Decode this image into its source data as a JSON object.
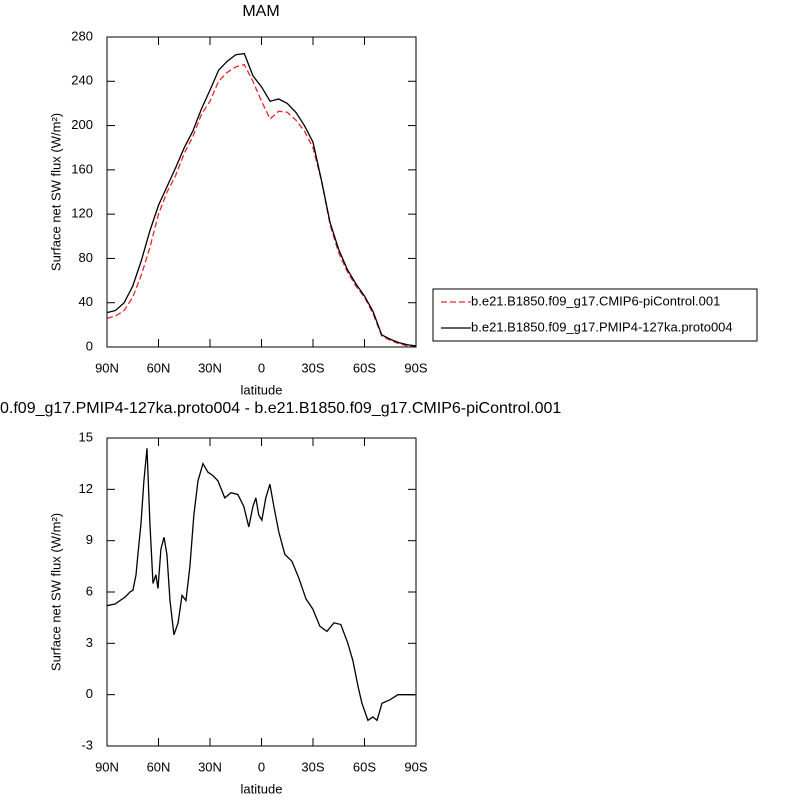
{
  "chart_data": [
    {
      "type": "line",
      "title": "MAM",
      "xlabel": "latitude",
      "ylabel": "Surface net SW flux (W/m²)",
      "x": [
        90,
        85,
        80,
        75,
        70,
        65,
        60,
        55,
        50,
        45,
        40,
        35,
        30,
        25,
        20,
        15,
        10,
        5,
        0,
        -5,
        -10,
        -15,
        -20,
        -25,
        -30,
        -35,
        -40,
        -45,
        -50,
        -55,
        -60,
        -65,
        -70,
        -75,
        -80,
        -85,
        -90
      ],
      "series": [
        {
          "name": "b.e21.B1850.f09_g17.CMIP6-piControl.001",
          "color": "#e8262a",
          "linestyle": "dashed",
          "values": [
            26,
            28,
            33,
            45,
            65,
            90,
            120,
            140,
            155,
            175,
            190,
            210,
            222,
            240,
            248,
            253,
            255,
            240,
            222,
            206,
            213,
            212,
            205,
            195,
            180,
            150,
            110,
            85,
            68,
            55,
            45,
            30,
            10,
            6,
            3,
            1,
            0.5
          ]
        },
        {
          "name": "b.e21.B1850.f09_g17.PMIP4-127ka.proto004",
          "color": "#000000",
          "linestyle": "solid",
          "values": [
            31,
            33,
            40,
            55,
            78,
            105,
            128,
            145,
            162,
            180,
            195,
            215,
            232,
            250,
            258,
            264,
            265,
            245,
            235,
            222,
            224,
            220,
            212,
            200,
            185,
            150,
            112,
            88,
            70,
            57,
            46,
            32,
            11,
            7,
            4,
            2,
            1
          ]
        }
      ],
      "xlim": [
        90,
        -90
      ],
      "xticks": [
        {
          "value": 90,
          "label": "90N"
        },
        {
          "value": 60,
          "label": "60N"
        },
        {
          "value": 30,
          "label": "30N"
        },
        0,
        {
          "value": -30,
          "label": "30S"
        },
        {
          "value": -60,
          "label": "60S"
        },
        {
          "value": -90,
          "label": "90S"
        }
      ],
      "ylim": [
        0,
        280
      ],
      "yticks": [
        0,
        40,
        80,
        120,
        160,
        200,
        240,
        280
      ],
      "legend": "right"
    },
    {
      "type": "line",
      "title": "0.f09_g17.PMIP4-127ka.proto004 - b.e21.B1850.f09_g17.CMIP6-piControl.001",
      "xlabel": "latitude",
      "ylabel": "Surface net SW flux (W/m²)",
      "x": [
        90,
        85.3,
        79.5,
        76.6,
        74.9,
        73.1,
        71.9,
        70.2,
        68.5,
        66.7,
        65.0,
        63.2,
        61.5,
        60.3,
        58.6,
        56.8,
        55.1,
        53.3,
        51.0,
        48.6,
        46.3,
        44.0,
        41.7,
        39.4,
        37.0,
        34.1,
        31.2,
        28.3,
        25.4,
        21.4,
        17.8,
        13.8,
        10.3,
        7.4,
        5.0,
        3.3,
        1.6,
        -0.2,
        -2.5,
        -4.9,
        -7.2,
        -10.1,
        -13.6,
        -17.7,
        -21.8,
        -25.9,
        -29.9,
        -34.0,
        -38.1,
        -42.2,
        -46.2,
        -50.3,
        -53.2,
        -56.2,
        -58.5,
        -62.0,
        -64.9,
        -67.3,
        -70.2,
        -74.8,
        -79.5,
        -85.3,
        -90
      ],
      "values": [
        5.2,
        5.3,
        5.7,
        6.0,
        6.1,
        7.0,
        8.3,
        10,
        12.5,
        14.4,
        10,
        6.5,
        7,
        6.2,
        8.5,
        9.2,
        8.2,
        5.5,
        3.5,
        4.2,
        5.8,
        5.5,
        7.5,
        10.5,
        12.5,
        13.5,
        13,
        12.8,
        12.5,
        11.5,
        11.8,
        11.7,
        11,
        9.8,
        11,
        11.5,
        10.5,
        10.2,
        11.5,
        12.3,
        11,
        9.5,
        8.2,
        7.8,
        6.8,
        5.6,
        5,
        4,
        3.7,
        4.2,
        4.1,
        3,
        2,
        0.5,
        -0.5,
        -1.5,
        -1.3,
        -1.5,
        -0.5,
        -0.3,
        0,
        0,
        0
      ],
      "color": "#000000",
      "xlim": [
        90,
        -90
      ],
      "xticks": [
        {
          "value": 90,
          "label": "90N"
        },
        {
          "value": 60,
          "label": "60N"
        },
        {
          "value": 30,
          "label": "30N"
        },
        0,
        {
          "value": -30,
          "label": "30S"
        },
        {
          "value": -60,
          "label": "60S"
        },
        {
          "value": -90,
          "label": "90S"
        }
      ],
      "ylim": [
        -3,
        15
      ],
      "yticks": [
        -3,
        0,
        3,
        6,
        9,
        12,
        15
      ]
    }
  ]
}
